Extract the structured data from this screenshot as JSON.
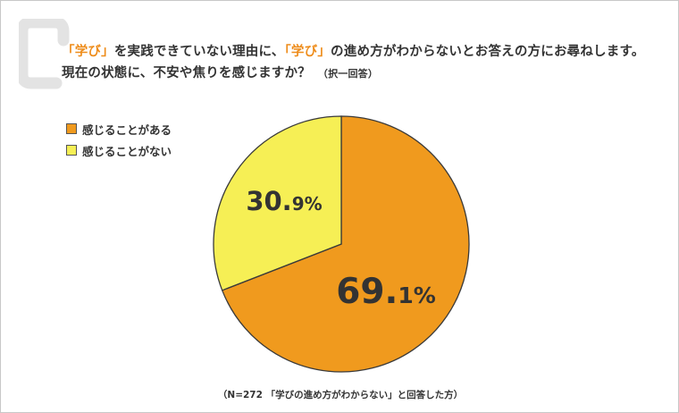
{
  "question": {
    "line1": [
      {
        "text": "「学び」",
        "highlight": true
      },
      {
        "text": "を実践できていない理由に、",
        "highlight": false
      },
      {
        "text": "「学び」",
        "highlight": true
      },
      {
        "text": "の進め方がわからないとお答えの方にお尋ねします。",
        "highlight": false
      }
    ],
    "line2": "現在の状態に、不安や焦りを感じますか？",
    "note": "（択一回答）"
  },
  "footnote": "（N=272 「学びの進め方がわからない」と回答した方）",
  "colors": {
    "accent": "#ee8c1a",
    "q_mark": "#e3e3e3"
  },
  "chart_data": {
    "type": "pie",
    "slices": [
      {
        "label": "感じることがある",
        "value": 69.1,
        "display_int": "69.",
        "display_dec": "1%",
        "color": "#f09a1e"
      },
      {
        "label": "感じることがない",
        "value": 30.9,
        "display_int": "30.",
        "display_dec": "9%",
        "color": "#f6ef55"
      }
    ],
    "start_angle_deg": 0,
    "direction": "clockwise",
    "legend": "top-left"
  }
}
